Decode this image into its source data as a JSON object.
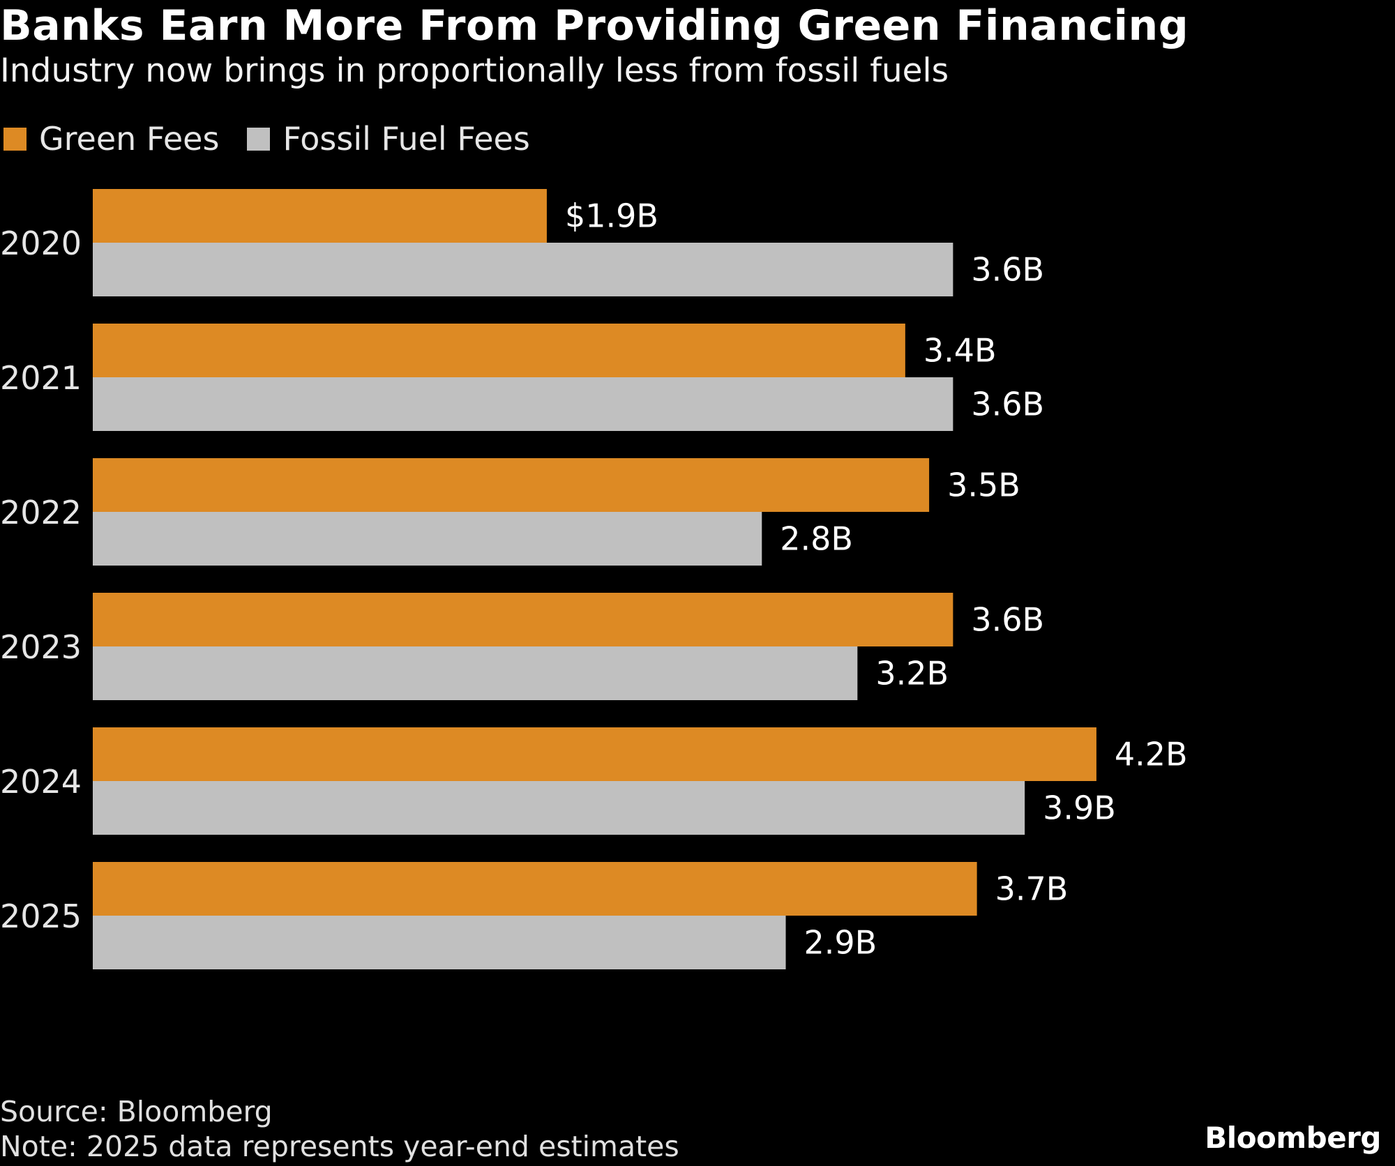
{
  "header": {
    "title": "Banks Earn More From Providing Green Financing",
    "subtitle": "Industry now brings in proportionally less from fossil fuels"
  },
  "footer": {
    "source": "Source: Bloomberg",
    "note": "Note: 2025 data represents year-end estimates",
    "brand": "Bloomberg"
  },
  "colors": {
    "background": "#000000",
    "green_fees": "#DD8A24",
    "fossil_fuel_fees": "#C0C0C0",
    "text": "#FFFFFF"
  },
  "chart_data": {
    "type": "bar",
    "orientation": "horizontal",
    "title": "Banks Earn More From Providing Green Financing",
    "subtitle": "Industry now brings in proportionally less from fossil fuels",
    "categories": [
      "2020",
      "2021",
      "2022",
      "2023",
      "2024",
      "2025"
    ],
    "series": [
      {
        "name": "Green Fees",
        "color": "#DD8A24",
        "values": [
          1.9,
          3.4,
          3.5,
          3.6,
          4.2,
          3.7
        ],
        "labels": [
          "$1.9B",
          "3.4B",
          "3.5B",
          "3.6B",
          "4.2B",
          "3.7B"
        ]
      },
      {
        "name": "Fossil Fuel Fees",
        "color": "#C0C0C0",
        "values": [
          3.6,
          3.6,
          2.8,
          3.2,
          3.9,
          2.9
        ],
        "labels": [
          "3.6B",
          "3.6B",
          "2.8B",
          "3.2B",
          "3.9B",
          "2.9B"
        ]
      }
    ],
    "unit": "USD billions",
    "xlim": [
      0,
      4.2
    ],
    "grid": false,
    "legend_position": "top-left",
    "xlabel": "",
    "ylabel": "",
    "source": "Source: Bloomberg",
    "note": "Note: 2025 data represents year-end estimates"
  }
}
